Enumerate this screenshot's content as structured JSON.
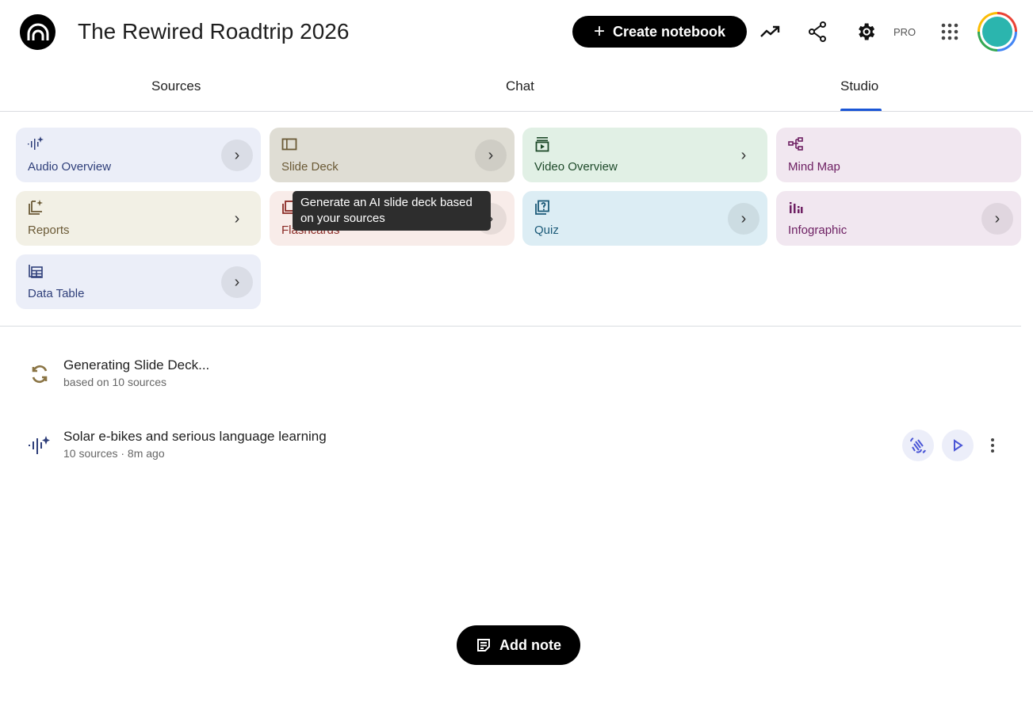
{
  "header": {
    "title": "The Rewired Roadtrip 2026",
    "create_label": "Create notebook",
    "pro_label": "PRO"
  },
  "tabs": [
    {
      "label": "Sources"
    },
    {
      "label": "Chat"
    },
    {
      "label": "Studio",
      "active": true
    }
  ],
  "studio_cards": [
    {
      "label": "Audio Overview",
      "icon": "audio-waveform-sparkle-icon",
      "bg": "#ebeef8",
      "fg": "#2f3f7a"
    },
    {
      "label": "Slide Deck",
      "icon": "slide-deck-icon",
      "bg": "#dfddd4",
      "fg": "#6b5a36"
    },
    {
      "label": "Video Overview",
      "icon": "video-icon",
      "bg": "#e1f0e5",
      "fg": "#1e4a2a"
    },
    {
      "label": "Mind Map",
      "icon": "mind-map-icon",
      "bg": "#f1e7f0",
      "fg": "#6e2063"
    },
    {
      "label": "Reports",
      "icon": "reports-icon",
      "bg": "#f2f0e5",
      "fg": "#6b5a36"
    },
    {
      "label": "Flashcards",
      "icon": "flashcards-icon",
      "bg": "#f8ece9",
      "fg": "#8a2a25"
    },
    {
      "label": "Quiz",
      "icon": "quiz-icon",
      "bg": "#dcedf4",
      "fg": "#1b5a78"
    },
    {
      "label": "Infographic",
      "icon": "infographic-icon",
      "bg": "#f1e7f0",
      "fg": "#6e2063"
    },
    {
      "label": "Data Table",
      "icon": "data-table-icon",
      "bg": "#ebeef8",
      "fg": "#2f3f7a"
    }
  ],
  "tooltip": "Generate an AI slide deck based on your sources",
  "outputs": [
    {
      "title": "Generating Slide Deck...",
      "subtitle": "based on 10 sources",
      "icon": "sync-icon"
    },
    {
      "title": "Solar e-bikes and serious language learning",
      "subtitle": "10 sources · 8m ago",
      "icon": "audio-waveform-sparkle-icon"
    }
  ],
  "add_note_label": "Add note",
  "accent": "#1a56d6"
}
